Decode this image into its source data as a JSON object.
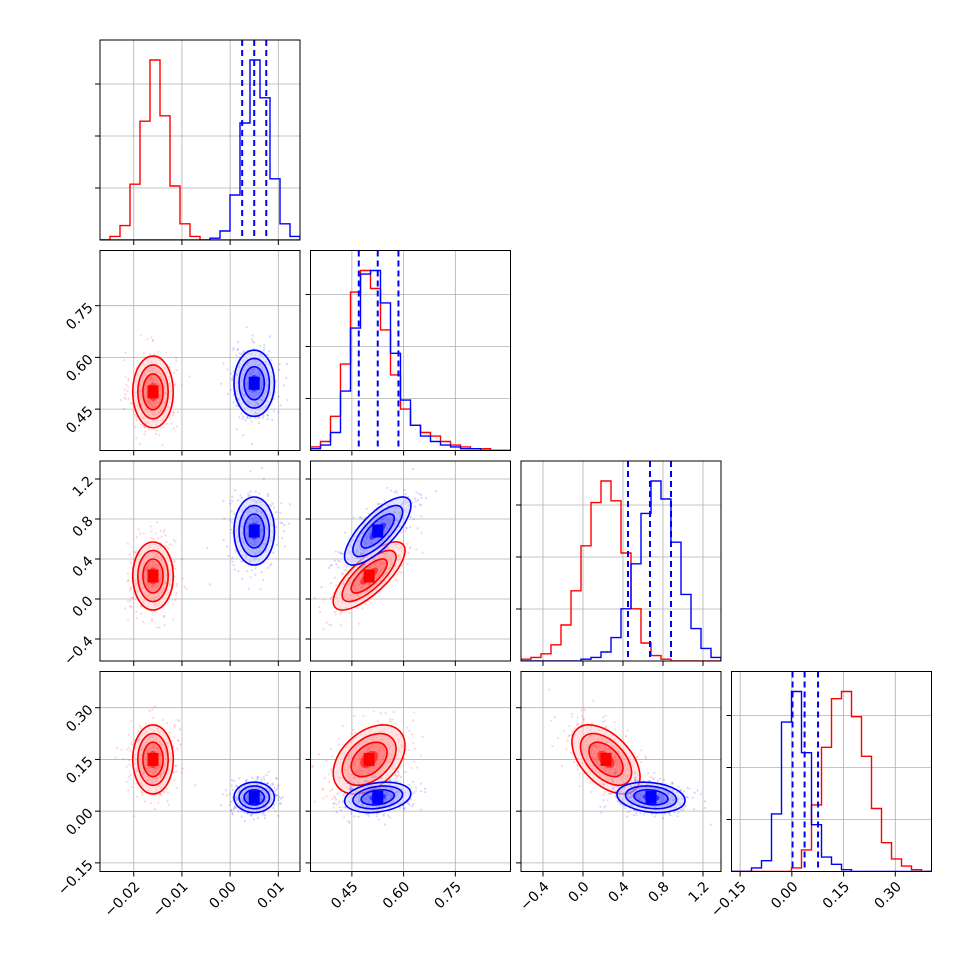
{
  "colors": {
    "series_a": "#ff0000",
    "series_b": "#0000ff",
    "grid": "#b0b0b0"
  },
  "chart_data": {
    "type": "corner",
    "grid": true,
    "parameters": [
      {
        "index": 0,
        "range": [
          -0.027,
          0.0145
        ],
        "ticks": [
          -0.02,
          -0.01,
          0.0,
          0.01
        ],
        "tick_labels": [
          "−0.02",
          "−0.01",
          "0.00",
          "0.01"
        ]
      },
      {
        "index": 1,
        "range": [
          0.33,
          0.91
        ],
        "ticks": [
          0.45,
          0.6,
          0.75
        ],
        "tick_labels": [
          "0.45",
          "0.60",
          "0.75"
        ]
      },
      {
        "index": 2,
        "range": [
          -0.62,
          1.38
        ],
        "ticks": [
          -0.4,
          0.0,
          0.4,
          0.8,
          1.2
        ],
        "tick_labels": [
          "−0.4",
          "0.0",
          "0.4",
          "0.8",
          "1.2"
        ]
      },
      {
        "index": 3,
        "range": [
          -0.175,
          0.405
        ],
        "ticks": [
          -0.15,
          0.0,
          0.15,
          0.3
        ],
        "tick_labels": [
          "−0.15",
          "0.00",
          "0.15",
          "0.30"
        ]
      }
    ],
    "series": [
      {
        "color": "#ff0000",
        "means": [
          -0.016,
          0.5,
          0.23,
          0.15
        ],
        "stds": [
          0.0021,
          0.052,
          0.17,
          0.05
        ],
        "correlations": [
          [
            0,
            1,
            0.0
          ],
          [
            0,
            2,
            0.0
          ],
          [
            0,
            3,
            0.0
          ],
          [
            1,
            2,
            0.75
          ],
          [
            1,
            3,
            0.4
          ],
          [
            2,
            3,
            -0.5
          ]
        ]
      },
      {
        "color": "#0000ff",
        "means": [
          0.005,
          0.525,
          0.68,
          0.04
        ],
        "stds": [
          0.0021,
          0.048,
          0.17,
          0.022
        ],
        "correlations": [
          [
            0,
            1,
            0.0
          ],
          [
            0,
            2,
            0.0
          ],
          [
            0,
            3,
            0.0
          ],
          [
            1,
            2,
            0.75
          ],
          [
            1,
            3,
            0.25
          ],
          [
            2,
            3,
            -0.2
          ]
        ],
        "quantile_lines": [
          [
            0.0025,
            0.005,
            0.0075
          ],
          [
            0.47,
            0.525,
            0.585
          ],
          [
            0.45,
            0.67,
            0.88
          ],
          [
            0.002,
            0.037,
            0.076
          ]
        ]
      }
    ],
    "histograms": {
      "series_a": [
        [
          0.0,
          0.02,
          0.08,
          0.31,
          0.66,
          1.0,
          0.69,
          0.3,
          0.09,
          0.02,
          0.0,
          0.0,
          0.0,
          0.0,
          0.0,
          0.0,
          0.0,
          0.0,
          0.0,
          0.0
        ],
        [
          0.02,
          0.05,
          0.19,
          0.48,
          0.88,
          1.0,
          0.9,
          0.67,
          0.42,
          0.23,
          0.14,
          0.1,
          0.08,
          0.05,
          0.03,
          0.02,
          0.01,
          0.01,
          0.0,
          0.0
        ],
        [
          0.01,
          0.02,
          0.04,
          0.09,
          0.2,
          0.39,
          0.64,
          0.88,
          1.0,
          0.89,
          0.6,
          0.29,
          0.1,
          0.03,
          0.01,
          0.0,
          0.0,
          0.0,
          0.0,
          0.0
        ],
        [
          0.0,
          0.0,
          0.0,
          0.0,
          0.0,
          0.0,
          0.02,
          0.12,
          0.37,
          0.69,
          0.96,
          1.0,
          0.86,
          0.64,
          0.35,
          0.16,
          0.07,
          0.03,
          0.01,
          0.0
        ]
      ],
      "series_b": [
        [
          0.0,
          0.0,
          0.0,
          0.0,
          0.0,
          0.0,
          0.0,
          0.0,
          0.0,
          0.0,
          0.0,
          0.01,
          0.05,
          0.25,
          0.65,
          1.0,
          0.79,
          0.34,
          0.09,
          0.02
        ],
        [
          0.01,
          0.03,
          0.1,
          0.33,
          0.68,
          0.98,
          1.0,
          0.82,
          0.54,
          0.28,
          0.14,
          0.08,
          0.05,
          0.03,
          0.02,
          0.01,
          0.01,
          0.0,
          0.0,
          0.0
        ],
        [
          0.0,
          0.0,
          0.0,
          0.0,
          0.0,
          0.0,
          0.01,
          0.02,
          0.05,
          0.13,
          0.29,
          0.54,
          0.82,
          1.0,
          0.9,
          0.66,
          0.37,
          0.18,
          0.07,
          0.02
        ],
        [
          0.0,
          0.0,
          0.02,
          0.06,
          0.32,
          0.83,
          1.0,
          0.66,
          0.26,
          0.08,
          0.04,
          0.01,
          0.0,
          0.0,
          0.0,
          0.0,
          0.0,
          0.0,
          0.0,
          0.0
        ]
      ]
    }
  }
}
